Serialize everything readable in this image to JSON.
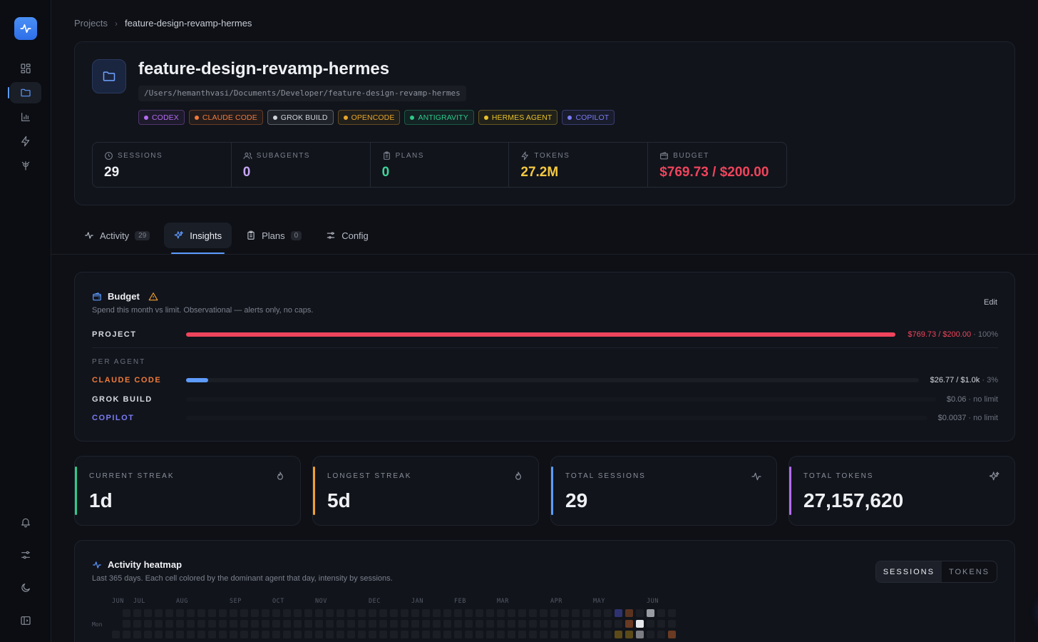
{
  "breadcrumb": {
    "root": "Projects",
    "current": "feature-design-revamp-hermes"
  },
  "project": {
    "title": "feature-design-revamp-hermes",
    "path": "/Users/hemanthvasi/Documents/Developer/feature-design-revamp-hermes",
    "agents": [
      {
        "label": "CODEX",
        "color": "#b46cf2"
      },
      {
        "label": "CLAUDE CODE",
        "color": "#f07a3a"
      },
      {
        "label": "GROK BUILD",
        "color": "#d0d3da"
      },
      {
        "label": "OPENCODE",
        "color": "#e8a52a"
      },
      {
        "label": "ANTIGRAVITY",
        "color": "#2ec98a"
      },
      {
        "label": "HERMES AGENT",
        "color": "#e8c22a"
      },
      {
        "label": "COPILOT",
        "color": "#7a7cf5"
      }
    ],
    "stats": {
      "sessions": {
        "label": "SESSIONS",
        "value": "29",
        "color": "#eef0f4"
      },
      "subagents": {
        "label": "SUBAGENTS",
        "value": "0",
        "color": "#c7a6f5"
      },
      "plans": {
        "label": "PLANS",
        "value": "0",
        "color": "#3ed59a"
      },
      "tokens": {
        "label": "TOKENS",
        "value": "27.2M",
        "color": "#f5c842"
      },
      "budget": {
        "label": "BUDGET",
        "value": "$769.73 / $200.00",
        "color": "#f0445c"
      }
    }
  },
  "tabs": [
    {
      "label": "Activity",
      "count": "29"
    },
    {
      "label": "Insights",
      "count": ""
    },
    {
      "label": "Plans",
      "count": "0"
    },
    {
      "label": "Config",
      "count": ""
    }
  ],
  "budget": {
    "title": "Budget",
    "subtitle": "Spend this month vs limit. Observational — alerts only, no caps.",
    "edit": "Edit",
    "project": {
      "label": "PROJECT",
      "amount": "$769.73 / $200.00",
      "pct": " · 100%",
      "fill": 1.0,
      "color": "#f0445c"
    },
    "per_agent_label": "PER AGENT",
    "agents": [
      {
        "label": "CLAUDE CODE",
        "label_color": "#f07a3a",
        "amount": "$26.77 / $1.0k",
        "pct": " · 3%",
        "fill": 0.03,
        "bar_color": "#5e9bff"
      },
      {
        "label": "GROK BUILD",
        "label_color": "#d7dae0",
        "amount": "$0.06",
        "pct": " · no limit",
        "fill": 0,
        "bar_color": "#5e9bff"
      },
      {
        "label": "COPILOT",
        "label_color": "#7a7cf5",
        "amount": "$0.0037",
        "pct": " · no limit",
        "fill": 0,
        "bar_color": "#5e9bff"
      }
    ]
  },
  "streaks": [
    {
      "label": "CURRENT STREAK",
      "value": "1d",
      "accent": "#2ec98a",
      "icon": "flame-icon"
    },
    {
      "label": "LONGEST STREAK",
      "value": "5d",
      "accent": "#f0a030",
      "icon": "flame-icon"
    },
    {
      "label": "TOTAL SESSIONS",
      "value": "29",
      "accent": "#5e9bff",
      "icon": "activity-icon"
    },
    {
      "label": "TOTAL TOKENS",
      "value": "27,157,620",
      "accent": "#b46cf2",
      "icon": "sparkles-icon"
    }
  ],
  "heatmap": {
    "title": "Activity heatmap",
    "subtitle": "Last 365 days. Each cell colored by the dominant agent that day, intensity by sessions.",
    "toggle": [
      "SESSIONS",
      "TOKENS"
    ],
    "months": [
      "JUN",
      "JUL",
      "AUG",
      "SEP",
      "OCT",
      "NOV",
      "DEC",
      "JAN",
      "FEB",
      "MAR",
      "APR",
      "MAY",
      "JUN"
    ],
    "day_label": "Mon"
  }
}
